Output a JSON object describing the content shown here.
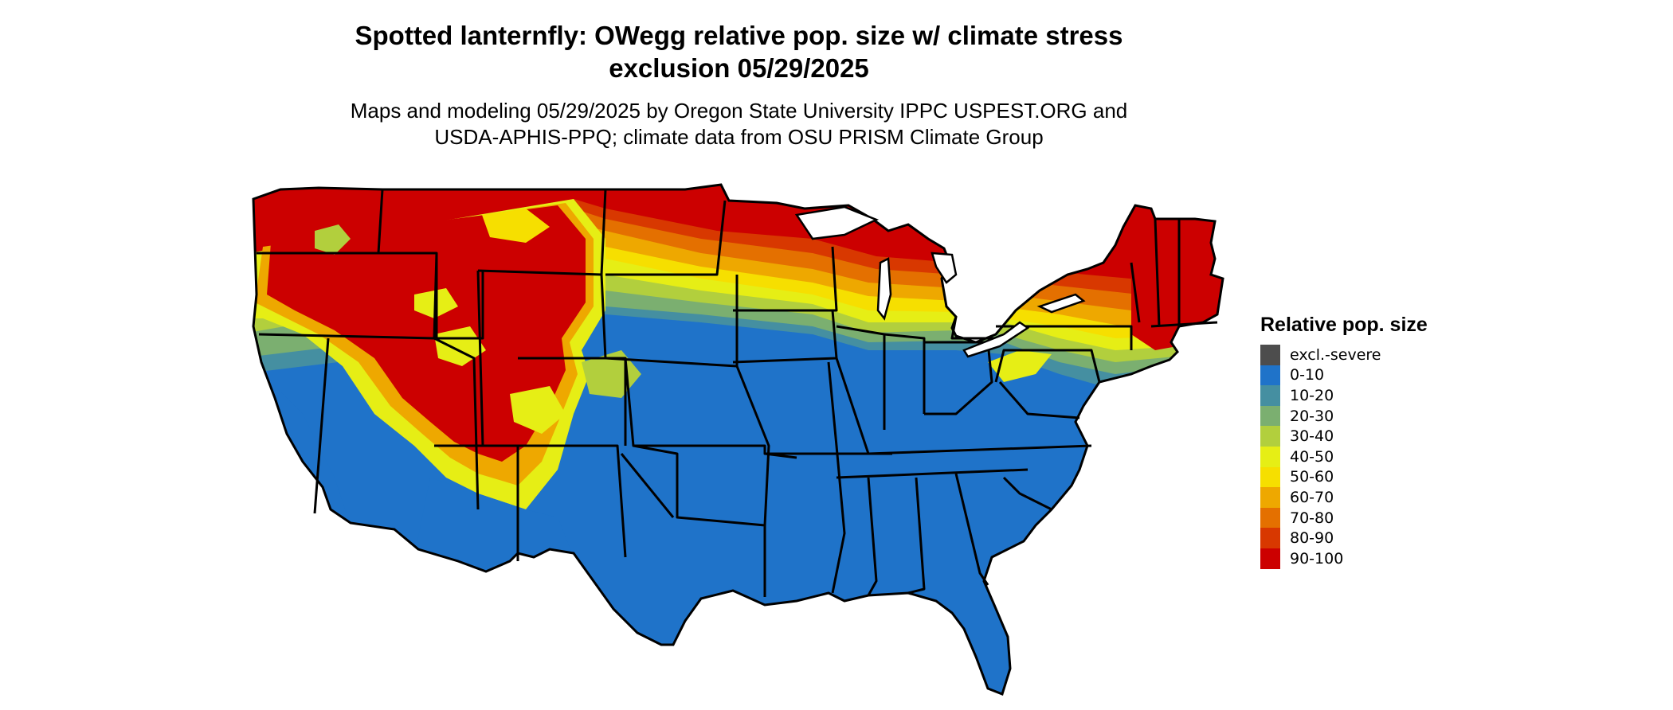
{
  "title_line1": "Spotted lanternfly: OWegg relative pop. size w/ climate stress",
  "title_line2": "exclusion 05/29/2025",
  "subtitle_line1": "Maps and modeling 05/29/2025 by Oregon State University IPPC USPEST.ORG and",
  "subtitle_line2": "USDA-APHIS-PPQ; climate data from OSU PRISM Climate Group",
  "legend": {
    "title": "Relative pop. size",
    "items": [
      {
        "label": "excl.-severe",
        "color": "#4d4d4d"
      },
      {
        "label": "0-10",
        "color": "#1f73c9"
      },
      {
        "label": "10-20",
        "color": "#458fa1"
      },
      {
        "label": "20-30",
        "color": "#7baf70"
      },
      {
        "label": "30-40",
        "color": "#b2cf3d"
      },
      {
        "label": "40-50",
        "color": "#e6ee15"
      },
      {
        "label": "50-60",
        "color": "#f6df00"
      },
      {
        "label": "60-70",
        "color": "#eea800"
      },
      {
        "label": "70-80",
        "color": "#e47000"
      },
      {
        "label": "80-90",
        "color": "#d83800"
      },
      {
        "label": "90-100",
        "color": "#cc0000"
      }
    ]
  }
}
